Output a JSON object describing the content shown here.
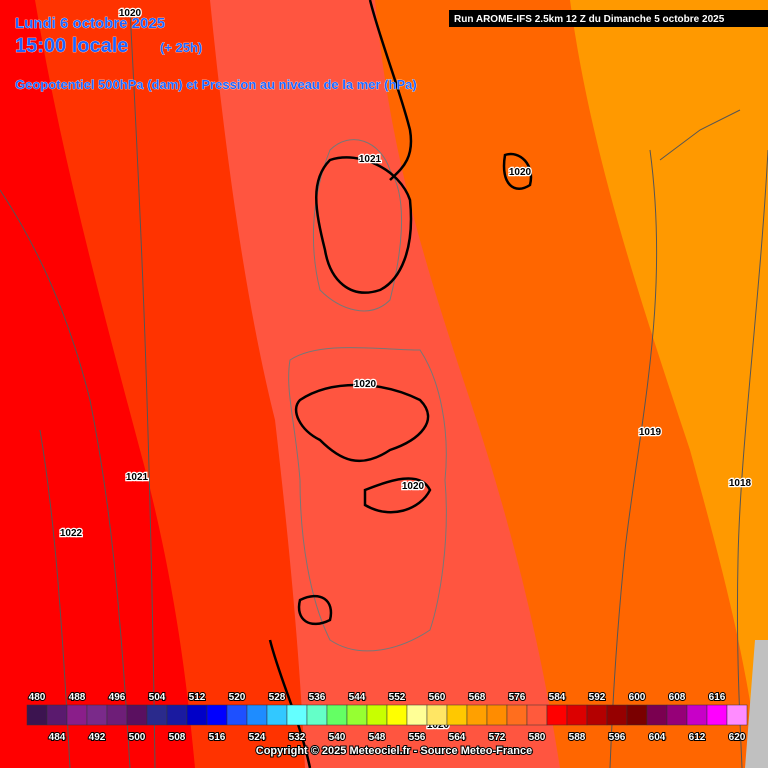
{
  "header": {
    "date": "Lundi 6 octobre 2025",
    "time": "15:00 locale",
    "lead": "(+ 25h)",
    "subtitle": "Geopotentiel 500hPa (dam) et Pression au niveau de la mer (hPa)",
    "run": "Run AROME-IFS 2.5km 12 Z du Dimanche 5 octobre 2025"
  },
  "isobar_labels": [
    "1020",
    "1021",
    "1020",
    "1021",
    "1022",
    "1020",
    "1020",
    "1019",
    "1018",
    "1020"
  ],
  "legend": {
    "values": [
      480,
      484,
      488,
      492,
      496,
      500,
      504,
      508,
      512,
      516,
      520,
      524,
      528,
      532,
      536,
      540,
      544,
      548,
      552,
      556,
      560,
      564,
      568,
      572,
      576,
      580,
      584,
      588,
      592,
      596,
      600,
      604,
      608,
      612,
      616,
      620
    ],
    "colors": [
      "#3c1450",
      "#5a1a6e",
      "#8a1e8a",
      "#7a2a8a",
      "#6e1e78",
      "#5a1060",
      "#2a2a8c",
      "#1a1aa0",
      "#0000c8",
      "#0000ff",
      "#1e50ff",
      "#1e8cff",
      "#32c8ff",
      "#64ffff",
      "#64ffc8",
      "#64ff64",
      "#96ff32",
      "#c8ff00",
      "#ffff00",
      "#ffff96",
      "#ffe664",
      "#ffc800",
      "#ffa000",
      "#ff8c00",
      "#ff6e1e",
      "#ff5a3c",
      "#ff0000",
      "#dc0000",
      "#b40000",
      "#960000",
      "#7a0000",
      "#7a0050",
      "#960078",
      "#c800c8",
      "#ff00ff",
      "#ff8cff"
    ]
  },
  "footer": {
    "copyright": "Copyright © 2025 Meteociel.fr - Source Meteo-France"
  }
}
